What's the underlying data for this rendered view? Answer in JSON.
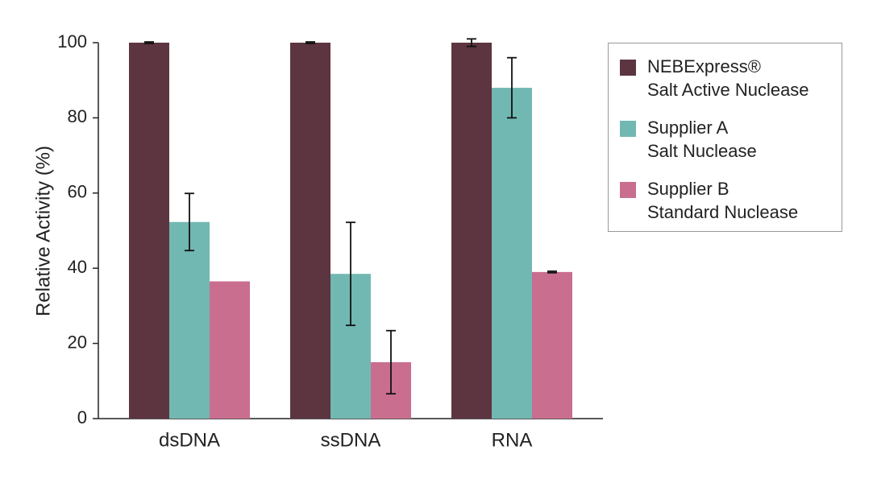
{
  "chart_data": {
    "type": "bar",
    "ylabel": "Relative Activity (%)",
    "categories": [
      "dsDNA",
      "ssDNA",
      "RNA"
    ],
    "series": [
      {
        "name": "NEBExpress®\nSalt Active Nuclease",
        "color": "#5c3540",
        "values": [
          100,
          100,
          100
        ],
        "errors": [
          0.2,
          0.2,
          1
        ]
      },
      {
        "name": "Supplier A\nSalt Nuclease",
        "color": "#72b8b2",
        "values": [
          52.3,
          38.5,
          88
        ],
        "errors": [
          7.6,
          13.7,
          8
        ]
      },
      {
        "name": "Supplier B\nStandard Nuclease",
        "color": "#c96e8f",
        "values": [
          36.5,
          15,
          39
        ],
        "errors": [
          null,
          8.4,
          0.2
        ]
      }
    ],
    "ylim": [
      0,
      100
    ],
    "yticks": [
      0,
      20,
      40,
      60,
      80,
      100
    ],
    "grid": false,
    "legend": "right"
  }
}
